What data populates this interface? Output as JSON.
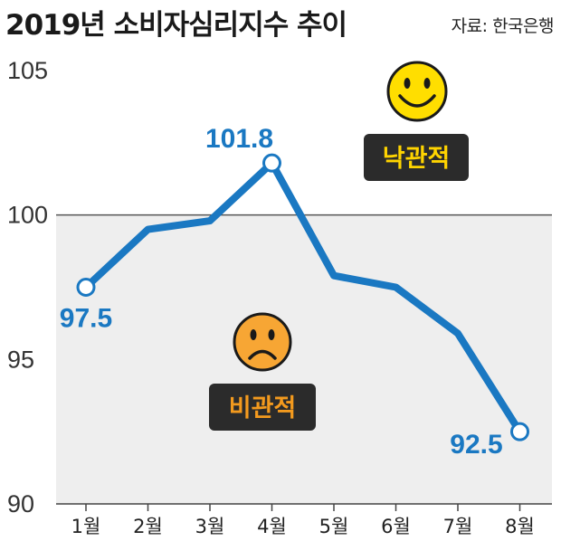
{
  "title": "2019년 소비자심리지수 추이",
  "source": "자료: 한국은행",
  "colors": {
    "line": "#1a78c2",
    "optimistic_text": "#ffd400",
    "pessimistic_text": "#f39a1e",
    "badge_bg": "#2b2b2b",
    "shade": "#eeeeee",
    "happy_face": "#ffde00",
    "sad_face": "#f7a634"
  },
  "annotations": {
    "optimistic": {
      "label": "낙관적",
      "icon": "smiley-face-icon"
    },
    "pessimistic": {
      "label": "비관적",
      "icon": "sad-face-icon"
    }
  },
  "chart_data": {
    "type": "line",
    "categories": [
      "1월",
      "2월",
      "3월",
      "4월",
      "5월",
      "6월",
      "7월",
      "8월"
    ],
    "values": [
      97.5,
      99.5,
      99.8,
      101.8,
      97.9,
      97.5,
      95.9,
      92.5
    ],
    "labeled_points": [
      {
        "index": 0,
        "label": "97.5"
      },
      {
        "index": 3,
        "label": "101.8"
      },
      {
        "index": 7,
        "label": "92.5"
      }
    ],
    "yticks": [
      "90",
      "95",
      "100",
      "105"
    ],
    "ylim": [
      90,
      105
    ],
    "reference_line": 100,
    "grid": false,
    "legend": "none"
  }
}
